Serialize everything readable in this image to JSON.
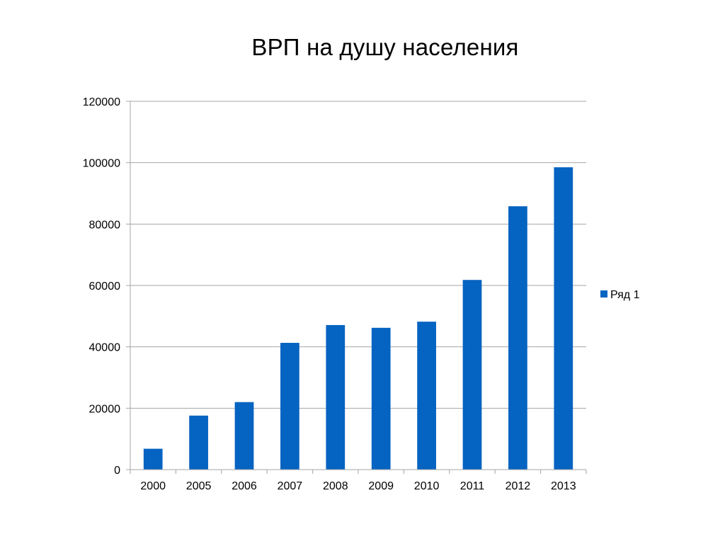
{
  "chart_data": {
    "type": "bar",
    "title": "ВРП на душу населения",
    "xlabel": "",
    "ylabel": "",
    "categories": [
      "2000",
      "2005",
      "2006",
      "2007",
      "2008",
      "2009",
      "2010",
      "2011",
      "2012",
      "2013"
    ],
    "series": [
      {
        "name": "Ряд 1",
        "color": "#0563C1",
        "values": [
          6800,
          17600,
          22000,
          41300,
          47100,
          46200,
          48200,
          61800,
          85800,
          98500
        ]
      }
    ],
    "ylim": [
      0,
      120000
    ],
    "yticks": [
      "0",
      "20000",
      "40000",
      "60000",
      "80000",
      "100000",
      "120000"
    ],
    "grid": true,
    "legend": "right"
  }
}
